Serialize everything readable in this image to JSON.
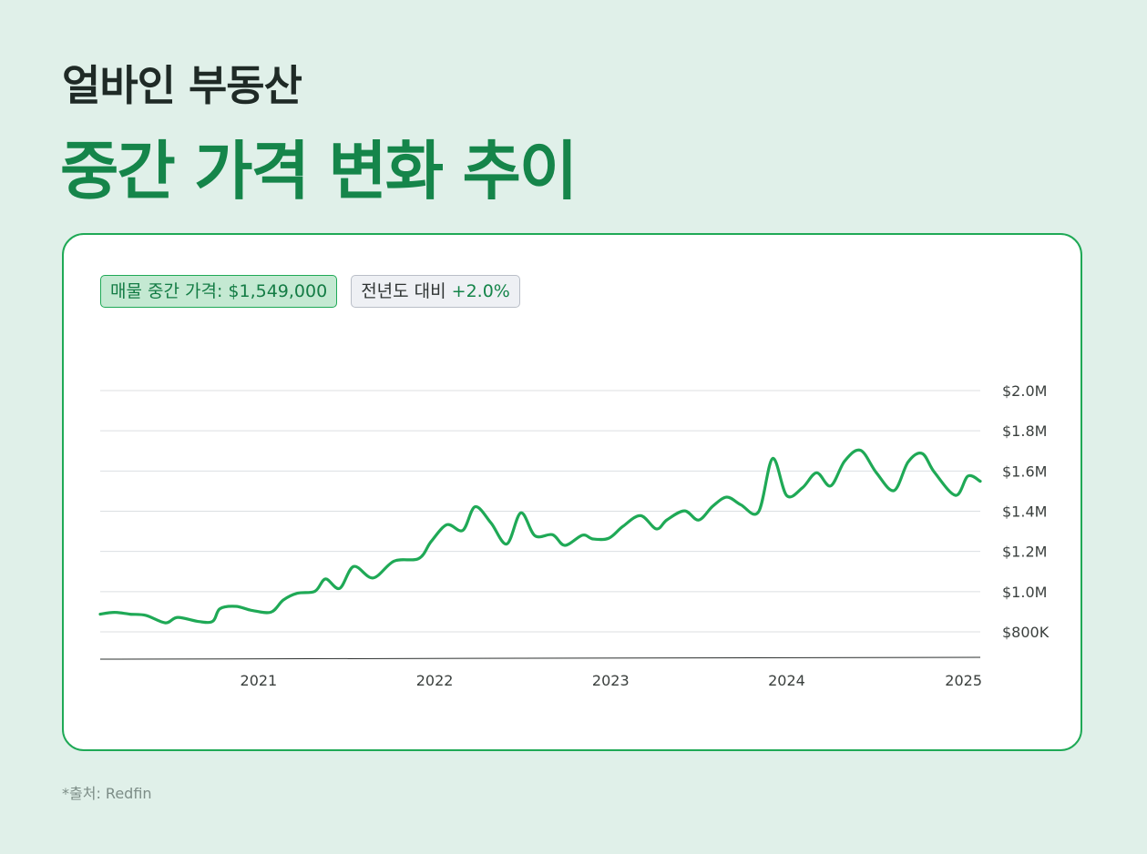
{
  "header": {
    "title_line1": "얼바인 부동산",
    "title_line2": "중간 가격 변화 추이"
  },
  "badges": {
    "median_price": "매물 중간 가격: $1,549,000",
    "yoy_label": "전년도 대비 ",
    "yoy_value": "+2.0%"
  },
  "source": "*출처: Redfin",
  "colors": {
    "background": "#e0f0e9",
    "accent": "#15854a",
    "line": "#1fa956",
    "card": "#ffffff"
  },
  "chart_data": {
    "type": "line",
    "title": "",
    "xlabel": "",
    "ylabel": "",
    "y_axis_side": "right",
    "grid": true,
    "legend": "none",
    "xlim": [
      2020.1,
      2025.1
    ],
    "ylim": [
      680000,
      2000000
    ],
    "y_ticks": [
      {
        "value": 800000,
        "label": "$800K"
      },
      {
        "value": 1000000,
        "label": "$1.0M"
      },
      {
        "value": 1200000,
        "label": "$1.2M"
      },
      {
        "value": 1400000,
        "label": "$1.4M"
      },
      {
        "value": 1600000,
        "label": "$1.6M"
      },
      {
        "value": 1800000,
        "label": "$1.8M"
      },
      {
        "value": 2000000,
        "label": "$2.0M"
      }
    ],
    "x_ticks": [
      {
        "value": 2021,
        "label": "2021"
      },
      {
        "value": 2022,
        "label": "2022"
      },
      {
        "value": 2023,
        "label": "2023"
      },
      {
        "value": 2024,
        "label": "2024"
      },
      {
        "value": 2025,
        "label": "2025"
      }
    ],
    "series": [
      {
        "points": [
          [
            2020.1,
            888000
          ],
          [
            2020.18,
            897000
          ],
          [
            2020.27,
            888000
          ],
          [
            2020.36,
            882000
          ],
          [
            2020.47,
            845000
          ],
          [
            2020.54,
            872000
          ],
          [
            2020.66,
            851000
          ],
          [
            2020.74,
            853000
          ],
          [
            2020.78,
            915000
          ],
          [
            2020.87,
            927000
          ],
          [
            2020.96,
            907000
          ],
          [
            2021.07,
            898000
          ],
          [
            2021.14,
            958000
          ],
          [
            2021.22,
            992000
          ],
          [
            2021.32,
            1002000
          ],
          [
            2021.38,
            1063000
          ],
          [
            2021.46,
            1016000
          ],
          [
            2021.54,
            1125000
          ],
          [
            2021.65,
            1068000
          ],
          [
            2021.77,
            1152000
          ],
          [
            2021.91,
            1165000
          ],
          [
            2021.98,
            1249000
          ],
          [
            2022.07,
            1333000
          ],
          [
            2022.16,
            1305000
          ],
          [
            2022.23,
            1422000
          ],
          [
            2022.32,
            1342000
          ],
          [
            2022.41,
            1237000
          ],
          [
            2022.49,
            1392000
          ],
          [
            2022.57,
            1278000
          ],
          [
            2022.67,
            1283000
          ],
          [
            2022.74,
            1230000
          ],
          [
            2022.84,
            1281000
          ],
          [
            2022.9,
            1262000
          ],
          [
            2022.99,
            1266000
          ],
          [
            2023.07,
            1325000
          ],
          [
            2023.17,
            1378000
          ],
          [
            2023.26,
            1312000
          ],
          [
            2023.32,
            1357000
          ],
          [
            2023.42,
            1402000
          ],
          [
            2023.5,
            1356000
          ],
          [
            2023.58,
            1425000
          ],
          [
            2023.66,
            1470000
          ],
          [
            2023.74,
            1432000
          ],
          [
            2023.84,
            1397000
          ],
          [
            2023.92,
            1662000
          ],
          [
            2024.0,
            1478000
          ],
          [
            2024.09,
            1517000
          ],
          [
            2024.17,
            1591000
          ],
          [
            2024.25,
            1526000
          ],
          [
            2024.33,
            1650000
          ],
          [
            2024.42,
            1703000
          ],
          [
            2024.51,
            1591000
          ],
          [
            2024.61,
            1503000
          ],
          [
            2024.69,
            1645000
          ],
          [
            2024.77,
            1687000
          ],
          [
            2024.84,
            1593000
          ],
          [
            2024.96,
            1479000
          ],
          [
            2025.03,
            1575000
          ],
          [
            2025.1,
            1549000
          ]
        ]
      }
    ]
  }
}
